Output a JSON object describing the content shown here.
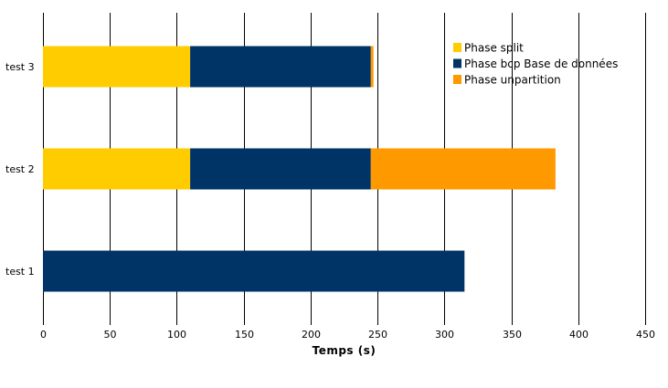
{
  "chart_data": {
    "type": "bar",
    "orientation": "horizontal",
    "stacked": true,
    "categories": [
      "test 3",
      "test 2",
      "test 1"
    ],
    "series": [
      {
        "name": "Phase split",
        "color": "#ffcc00",
        "values": [
          110,
          110,
          0
        ]
      },
      {
        "name": "Phase bcp Base de données",
        "color": "#003366",
        "values": [
          135,
          135,
          315
        ]
      },
      {
        "name": "Phase unpartition",
        "color": "#ff9900",
        "values": [
          2,
          138,
          0
        ]
      }
    ],
    "xlabel": "Temps (s)",
    "xlim": [
      0,
      450
    ],
    "xticks": [
      0,
      50,
      100,
      150,
      200,
      250,
      300,
      350,
      400,
      450
    ],
    "grid": "vertical",
    "legend_position": "top-right"
  }
}
